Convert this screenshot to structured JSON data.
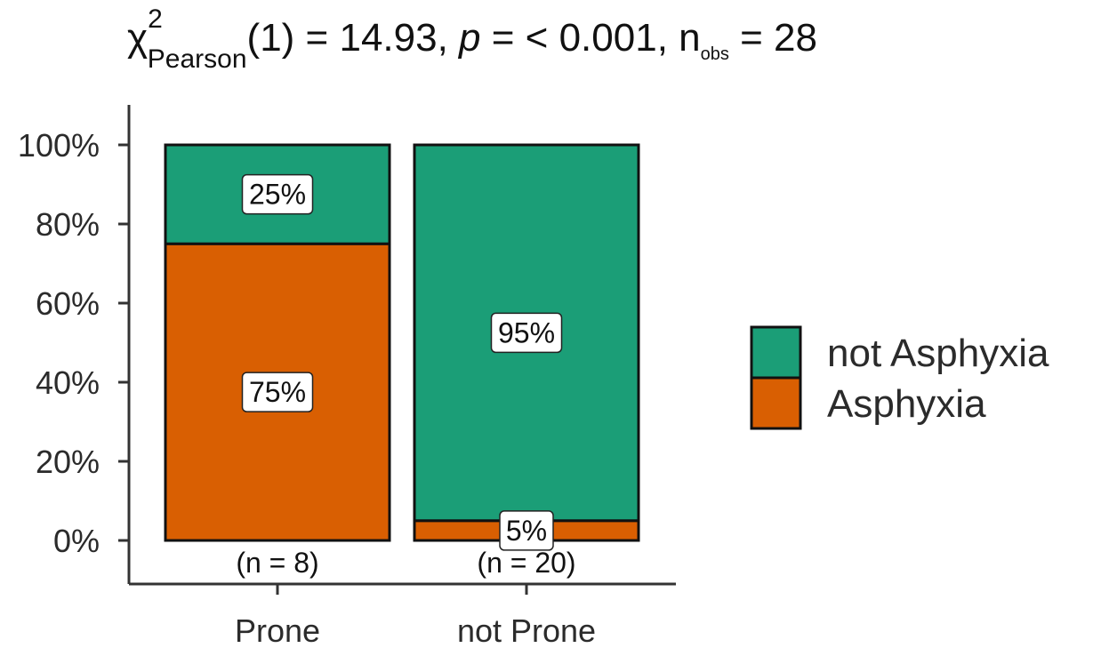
{
  "subtitle": {
    "chi": "χ",
    "sup": "2",
    "sub": "Pearson",
    "df_part": "(1) = 14.93, ",
    "p_symbol": "p",
    "p_part": " = < 0.001, n",
    "nobs_sub": "obs",
    "nobs_part": " = 28"
  },
  "chart_data": {
    "type": "bar",
    "stacked": true,
    "percent": true,
    "categories": [
      "Prone",
      "not Prone"
    ],
    "category_n_labels": [
      "(n = 8)",
      "(n = 20)"
    ],
    "series": [
      {
        "name": "Asphyxia",
        "color": "#D95F02",
        "values": [
          75,
          5
        ],
        "labels": [
          "75%",
          "5%"
        ]
      },
      {
        "name": "not Asphyxia",
        "color": "#1B9E77",
        "values": [
          25,
          95
        ],
        "labels": [
          "25%",
          "95%"
        ]
      }
    ],
    "ylim": [
      0,
      100
    ],
    "yticks": [
      "0%",
      "20%",
      "40%",
      "60%",
      "80%",
      "100%"
    ],
    "legend": {
      "placement": "right",
      "entries": [
        {
          "name": "not Asphyxia",
          "color": "#1B9E77"
        },
        {
          "name": "Asphyxia",
          "color": "#D95F02"
        }
      ]
    },
    "grid": false
  }
}
